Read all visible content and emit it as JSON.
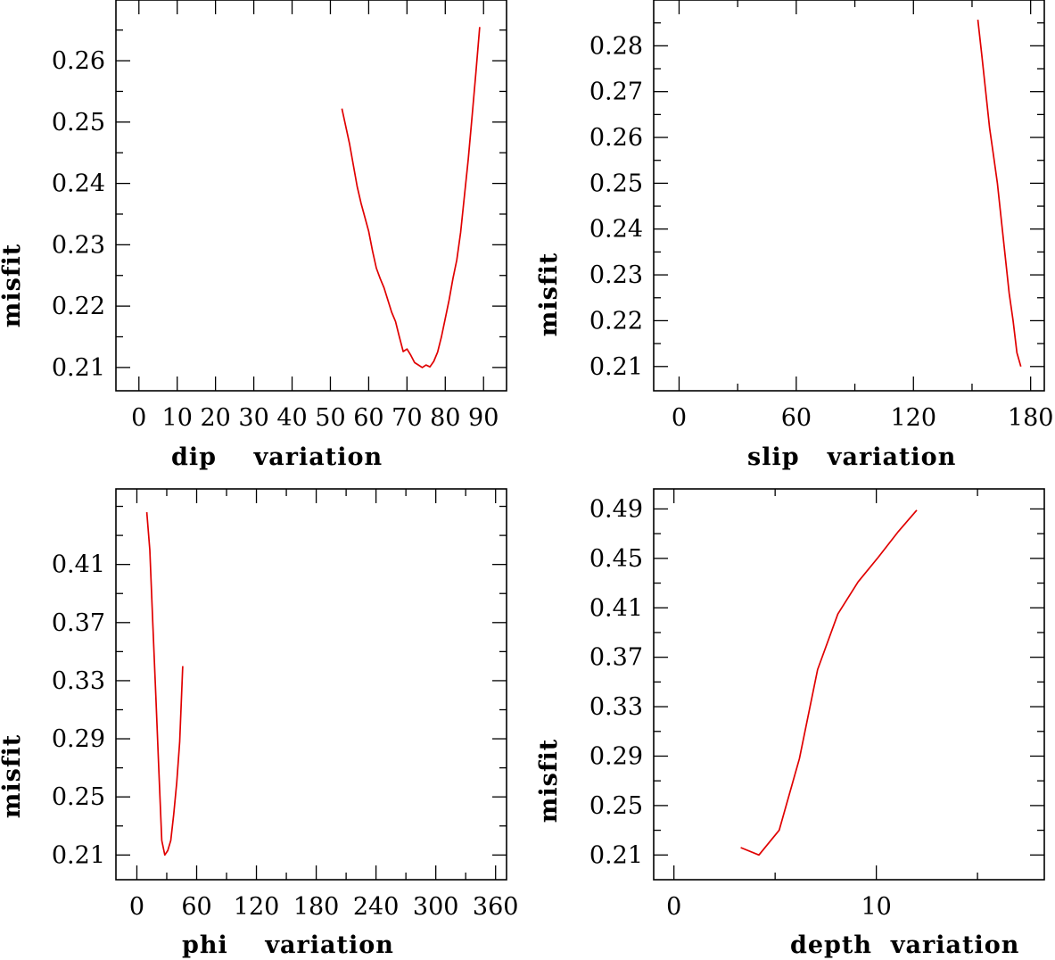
{
  "chart_data": [
    {
      "id": "dip",
      "type": "line",
      "title": "",
      "xlabel": "dip    variation",
      "ylabel": "misfit",
      "xlim": [
        -6,
        96
      ],
      "ylim": [
        0.2062,
        0.2699
      ],
      "xticks": [
        0,
        10,
        20,
        30,
        40,
        50,
        60,
        70,
        80,
        90
      ],
      "xticklabels": [
        "0",
        "10",
        "20",
        "30",
        "40",
        "50",
        "60",
        "70",
        "80",
        "90"
      ],
      "xminor": [],
      "yticks": [
        0.21,
        0.22,
        0.23,
        0.24,
        0.25,
        0.26
      ],
      "yticklabels": [
        "0.21",
        "0.22",
        "0.23",
        "0.24",
        "0.25",
        "0.26"
      ],
      "yminor": [
        0.205,
        0.215,
        0.225,
        0.235,
        0.245,
        0.255,
        0.265
      ],
      "grid": false,
      "color": "#e00000",
      "series": [
        {
          "name": "misfit",
          "x": [
            53,
            55,
            56,
            57,
            58,
            59,
            60,
            61,
            62,
            63,
            64,
            65,
            66,
            67,
            68,
            69,
            70,
            71,
            72,
            73,
            74,
            75,
            76,
            77,
            78,
            79,
            80,
            81,
            82,
            83,
            84,
            85,
            86,
            87,
            88,
            89
          ],
          "y": [
            0.2522,
            0.2465,
            0.243,
            0.2395,
            0.2368,
            0.2345,
            0.2322,
            0.229,
            0.2262,
            0.2245,
            0.223,
            0.221,
            0.219,
            0.2175,
            0.215,
            0.2126,
            0.213,
            0.212,
            0.2108,
            0.2104,
            0.21,
            0.2104,
            0.2101,
            0.211,
            0.2125,
            0.215,
            0.218,
            0.221,
            0.2245,
            0.2275,
            0.232,
            0.238,
            0.244,
            0.251,
            0.258,
            0.2655
          ]
        }
      ]
    },
    {
      "id": "slip",
      "type": "line",
      "title": "",
      "xlabel": "slip   variation",
      "ylabel": "misfit",
      "xlim": [
        -13,
        187
      ],
      "ylim": [
        0.2047,
        0.29
      ],
      "xticks": [
        0,
        60,
        120,
        180
      ],
      "xticklabels": [
        "0",
        "60",
        "120",
        "180"
      ],
      "xminor": [
        30,
        90,
        150
      ],
      "yticks": [
        0.21,
        0.22,
        0.23,
        0.24,
        0.25,
        0.26,
        0.27,
        0.28
      ],
      "yticklabels": [
        "0.21",
        "0.22",
        "0.23",
        "0.24",
        "0.25",
        "0.26",
        "0.27",
        "0.28"
      ],
      "yminor": [
        0.215,
        0.225,
        0.235,
        0.245,
        0.255,
        0.265,
        0.275,
        0.285
      ],
      "grid": false,
      "color": "#e00000",
      "series": [
        {
          "name": "misfit",
          "x": [
            153,
            155,
            157,
            159,
            161,
            163,
            165,
            167,
            169,
            171,
            173,
            175
          ],
          "y": [
            0.2857,
            0.278,
            0.27,
            0.262,
            0.256,
            0.25,
            0.242,
            0.234,
            0.226,
            0.22,
            0.213,
            0.21
          ]
        }
      ]
    },
    {
      "id": "phi",
      "type": "line",
      "title": "",
      "xlabel": "phi    variation",
      "ylabel": "misfit",
      "xlim": [
        -21,
        371
      ],
      "ylim": [
        0.193,
        0.462
      ],
      "xticks": [
        0,
        60,
        120,
        180,
        240,
        300,
        360
      ],
      "xticklabels": [
        "0",
        "60",
        "120",
        "180",
        "240",
        "300",
        "360"
      ],
      "xminor": [
        30,
        90,
        150,
        210,
        270,
        330
      ],
      "yticks": [
        0.21,
        0.25,
        0.29,
        0.33,
        0.37,
        0.41
      ],
      "yticklabels": [
        "0.21",
        "0.25",
        "0.29",
        "0.33",
        "0.37",
        "0.41"
      ],
      "yminor": [
        0.23,
        0.27,
        0.31,
        0.35,
        0.39,
        0.43,
        0.45
      ],
      "grid": false,
      "color": "#e00000",
      "series": [
        {
          "name": "misfit",
          "x": [
            10,
            13,
            16,
            19,
            22,
            25,
            28,
            31,
            34,
            37,
            40,
            43,
            46
          ],
          "y": [
            0.446,
            0.42,
            0.37,
            0.32,
            0.27,
            0.22,
            0.21,
            0.213,
            0.22,
            0.238,
            0.26,
            0.288,
            0.34
          ]
        }
      ]
    },
    {
      "id": "depth",
      "type": "line",
      "title": "",
      "xlabel": "depth  variation",
      "ylabel": "misfit",
      "xlim": [
        -1,
        18.3
      ],
      "ylim": [
        0.19,
        0.5062
      ],
      "xticks": [
        0,
        10
      ],
      "xticklabels": [
        "0",
        "10"
      ],
      "xminor": [
        5,
        15
      ],
      "yticks": [
        0.21,
        0.25,
        0.29,
        0.33,
        0.37,
        0.41,
        0.45,
        0.49
      ],
      "yticklabels": [
        "0.21",
        "0.25",
        "0.29",
        "0.33",
        "0.37",
        "0.41",
        "0.45",
        "0.49"
      ],
      "yminor": [
        0.23,
        0.27,
        0.31,
        0.35,
        0.39,
        0.43,
        0.47
      ],
      "grid": false,
      "color": "#e00000",
      "series": [
        {
          "name": "misfit",
          "x": [
            3.3,
            4.2,
            5.2,
            6.2,
            7.1,
            8.1,
            9.1,
            10.1,
            11.1,
            12.0
          ],
          "y": [
            0.216,
            0.21,
            0.23,
            0.288,
            0.36,
            0.405,
            0.431,
            0.451,
            0.472,
            0.489
          ]
        }
      ]
    }
  ]
}
